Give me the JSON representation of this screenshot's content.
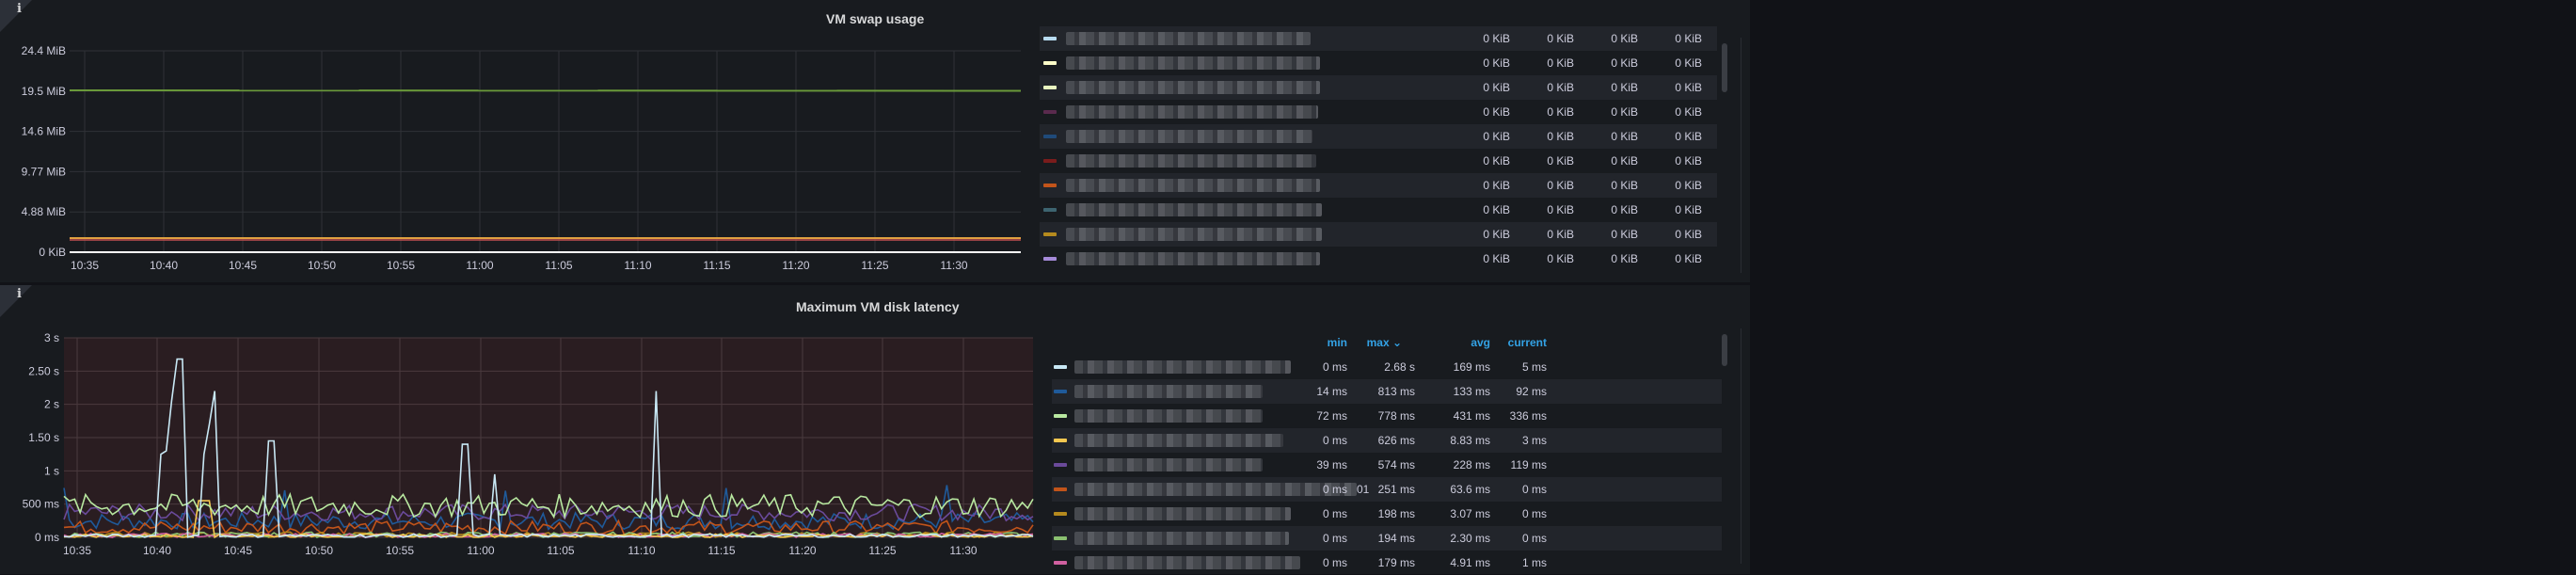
{
  "swap_panel": {
    "title": "VM swap usage",
    "info_icon": "i",
    "y_ticks": [
      "24.4 MiB",
      "19.5 MiB",
      "14.6 MiB",
      "9.77 MiB",
      "4.88 MiB",
      "0 KiB"
    ],
    "x_ticks": [
      "10:35",
      "10:40",
      "10:45",
      "10:50",
      "10:55",
      "11:00",
      "11:05",
      "11:10",
      "11:15",
      "11:20",
      "11:25",
      "11:30"
    ],
    "legend_rows": [
      {
        "color": "#b7dbf0",
        "values": [
          "0 KiB",
          "0 KiB",
          "0 KiB",
          "0 KiB"
        ]
      },
      {
        "color": "#fcfcc8",
        "values": [
          "0 KiB",
          "0 KiB",
          "0 KiB",
          "0 KiB"
        ]
      },
      {
        "color": "#e8f5c0",
        "values": [
          "0 KiB",
          "0 KiB",
          "0 KiB",
          "0 KiB"
        ]
      },
      {
        "color": "#5a2a4e",
        "values": [
          "0 KiB",
          "0 KiB",
          "0 KiB",
          "0 KiB"
        ]
      },
      {
        "color": "#1f4a7a",
        "values": [
          "0 KiB",
          "0 KiB",
          "0 KiB",
          "0 KiB"
        ]
      },
      {
        "color": "#7a1c1c",
        "values": [
          "0 KiB",
          "0 KiB",
          "0 KiB",
          "0 KiB"
        ]
      },
      {
        "color": "#c2541a",
        "values": [
          "0 KiB",
          "0 KiB",
          "0 KiB",
          "0 KiB"
        ]
      },
      {
        "color": "#3d6470",
        "values": [
          "0 KiB",
          "0 KiB",
          "0 KiB",
          "0 KiB"
        ]
      },
      {
        "color": "#b58a1e",
        "values": [
          "0 KiB",
          "0 KiB",
          "0 KiB",
          "0 KiB"
        ]
      },
      {
        "color": "#a58ad8",
        "values": [
          "0 KiB",
          "0 KiB",
          "0 KiB",
          "0 KiB"
        ]
      }
    ]
  },
  "latency_panel": {
    "title": "Maximum VM disk latency",
    "info_icon": "i",
    "y_ticks": [
      "3 s",
      "2.50 s",
      "2 s",
      "1.50 s",
      "1 s",
      "500 ms",
      "0 ms"
    ],
    "x_ticks": [
      "10:35",
      "10:40",
      "10:45",
      "10:50",
      "10:55",
      "11:00",
      "11:05",
      "11:10",
      "11:15",
      "11:20",
      "11:25",
      "11:30"
    ],
    "legend_headers": {
      "min": "min",
      "max": "max",
      "sort_icon": "⌄",
      "avg": "avg",
      "current": "current"
    },
    "legend_rows": [
      {
        "color": "#c8e8f5",
        "min": "0 ms",
        "max": "2.68 s",
        "avg": "169 ms",
        "current": "5 ms",
        "suffix": ""
      },
      {
        "color": "#1f5a9a",
        "min": "14 ms",
        "max": "813 ms",
        "avg": "133 ms",
        "current": "92 ms",
        "suffix": ""
      },
      {
        "color": "#b8e8a0",
        "min": "72 ms",
        "max": "778 ms",
        "avg": "431 ms",
        "current": "336 ms",
        "suffix": ""
      },
      {
        "color": "#f5c850",
        "min": "0 ms",
        "max": "626 ms",
        "avg": "8.83 ms",
        "current": "3 ms",
        "suffix": ""
      },
      {
        "color": "#6a4a9a",
        "min": "39 ms",
        "max": "574 ms",
        "avg": "228 ms",
        "current": "119 ms",
        "suffix": ""
      },
      {
        "color": "#c2541a",
        "min": "0 ms",
        "max": "251 ms",
        "avg": "63.6 ms",
        "current": "0 ms",
        "suffix": "01"
      },
      {
        "color": "#b58a1e",
        "min": "0 ms",
        "max": "198 ms",
        "avg": "3.07 ms",
        "current": "0 ms",
        "suffix": ""
      },
      {
        "color": "#8ac070",
        "min": "0 ms",
        "max": "194 ms",
        "avg": "2.30 ms",
        "current": "0 ms",
        "suffix": ""
      },
      {
        "color": "#d060a0",
        "min": "0 ms",
        "max": "179 ms",
        "avg": "4.91 ms",
        "current": "1 ms",
        "suffix": ""
      }
    ]
  }
}
